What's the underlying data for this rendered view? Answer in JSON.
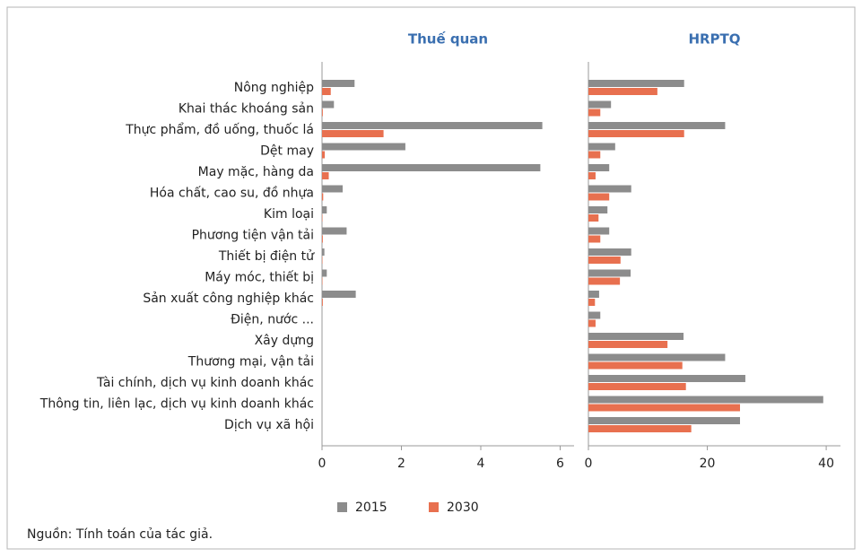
{
  "chart_data": {
    "type": "bar",
    "orientation": "horizontal",
    "categories": [
      "Nông nghiệp",
      "Khai thác khoáng sản",
      "Thực phẩm, đồ uống, thuốc lá",
      "Dệt may",
      "May mặc, hàng da",
      "Hóa chất, cao su, đồ nhựa",
      "Kim loại",
      "Phương tiện vận tải",
      "Thiết bị điện tử",
      "Máy móc, thiết bị",
      "Sản xuất công nghiệp khác",
      "Điện, nước ...",
      "Xây dựng",
      "Thương mại, vận tải",
      "Tài chính, dịch vụ kinh doanh khác",
      "Thông tin, liên lạc, dịch vụ kinh doanh khác",
      "Dịch vụ xã hội"
    ],
    "legend": [
      {
        "name": "2015",
        "color": "#8c8c8c"
      },
      {
        "name": "2030",
        "color": "#e8704f"
      }
    ],
    "panels": [
      {
        "title": "Thuế quan",
        "xlim": [
          0,
          6.35
        ],
        "xticks": [
          0,
          2,
          4,
          6
        ],
        "series": [
          {
            "values": [
              0.82,
              0.3,
              5.55,
              2.1,
              5.5,
              0.52,
              0.12,
              0.62,
              0.06,
              0.12,
              0.85,
              0,
              0,
              0,
              0,
              0,
              0
            ]
          },
          {
            "values": [
              0.22,
              0.02,
              1.55,
              0.07,
              0.17,
              0.03,
              0.01,
              0.02,
              0.01,
              0.01,
              0.02,
              0,
              0,
              0,
              0,
              0,
              0
            ]
          }
        ]
      },
      {
        "title": "HRPTQ",
        "xlim": [
          0,
          42.4
        ],
        "xticks": [
          0,
          20,
          40
        ],
        "series": [
          {
            "values": [
              16.1,
              3.8,
              23,
              4.5,
              3.5,
              7.2,
              3.2,
              3.5,
              7.2,
              7.1,
              1.8,
              2.0,
              16.0,
              23,
              26.4,
              39.5,
              25.5
            ]
          },
          {
            "values": [
              11.6,
              2.0,
              16.1,
              2.0,
              1.2,
              3.5,
              1.7,
              2.0,
              5.4,
              5.3,
              1.1,
              1.2,
              13.3,
              15.8,
              16.4,
              25.5,
              17.3
            ]
          }
        ]
      }
    ],
    "source": "Nguồn: Tính toán của tác giả."
  }
}
